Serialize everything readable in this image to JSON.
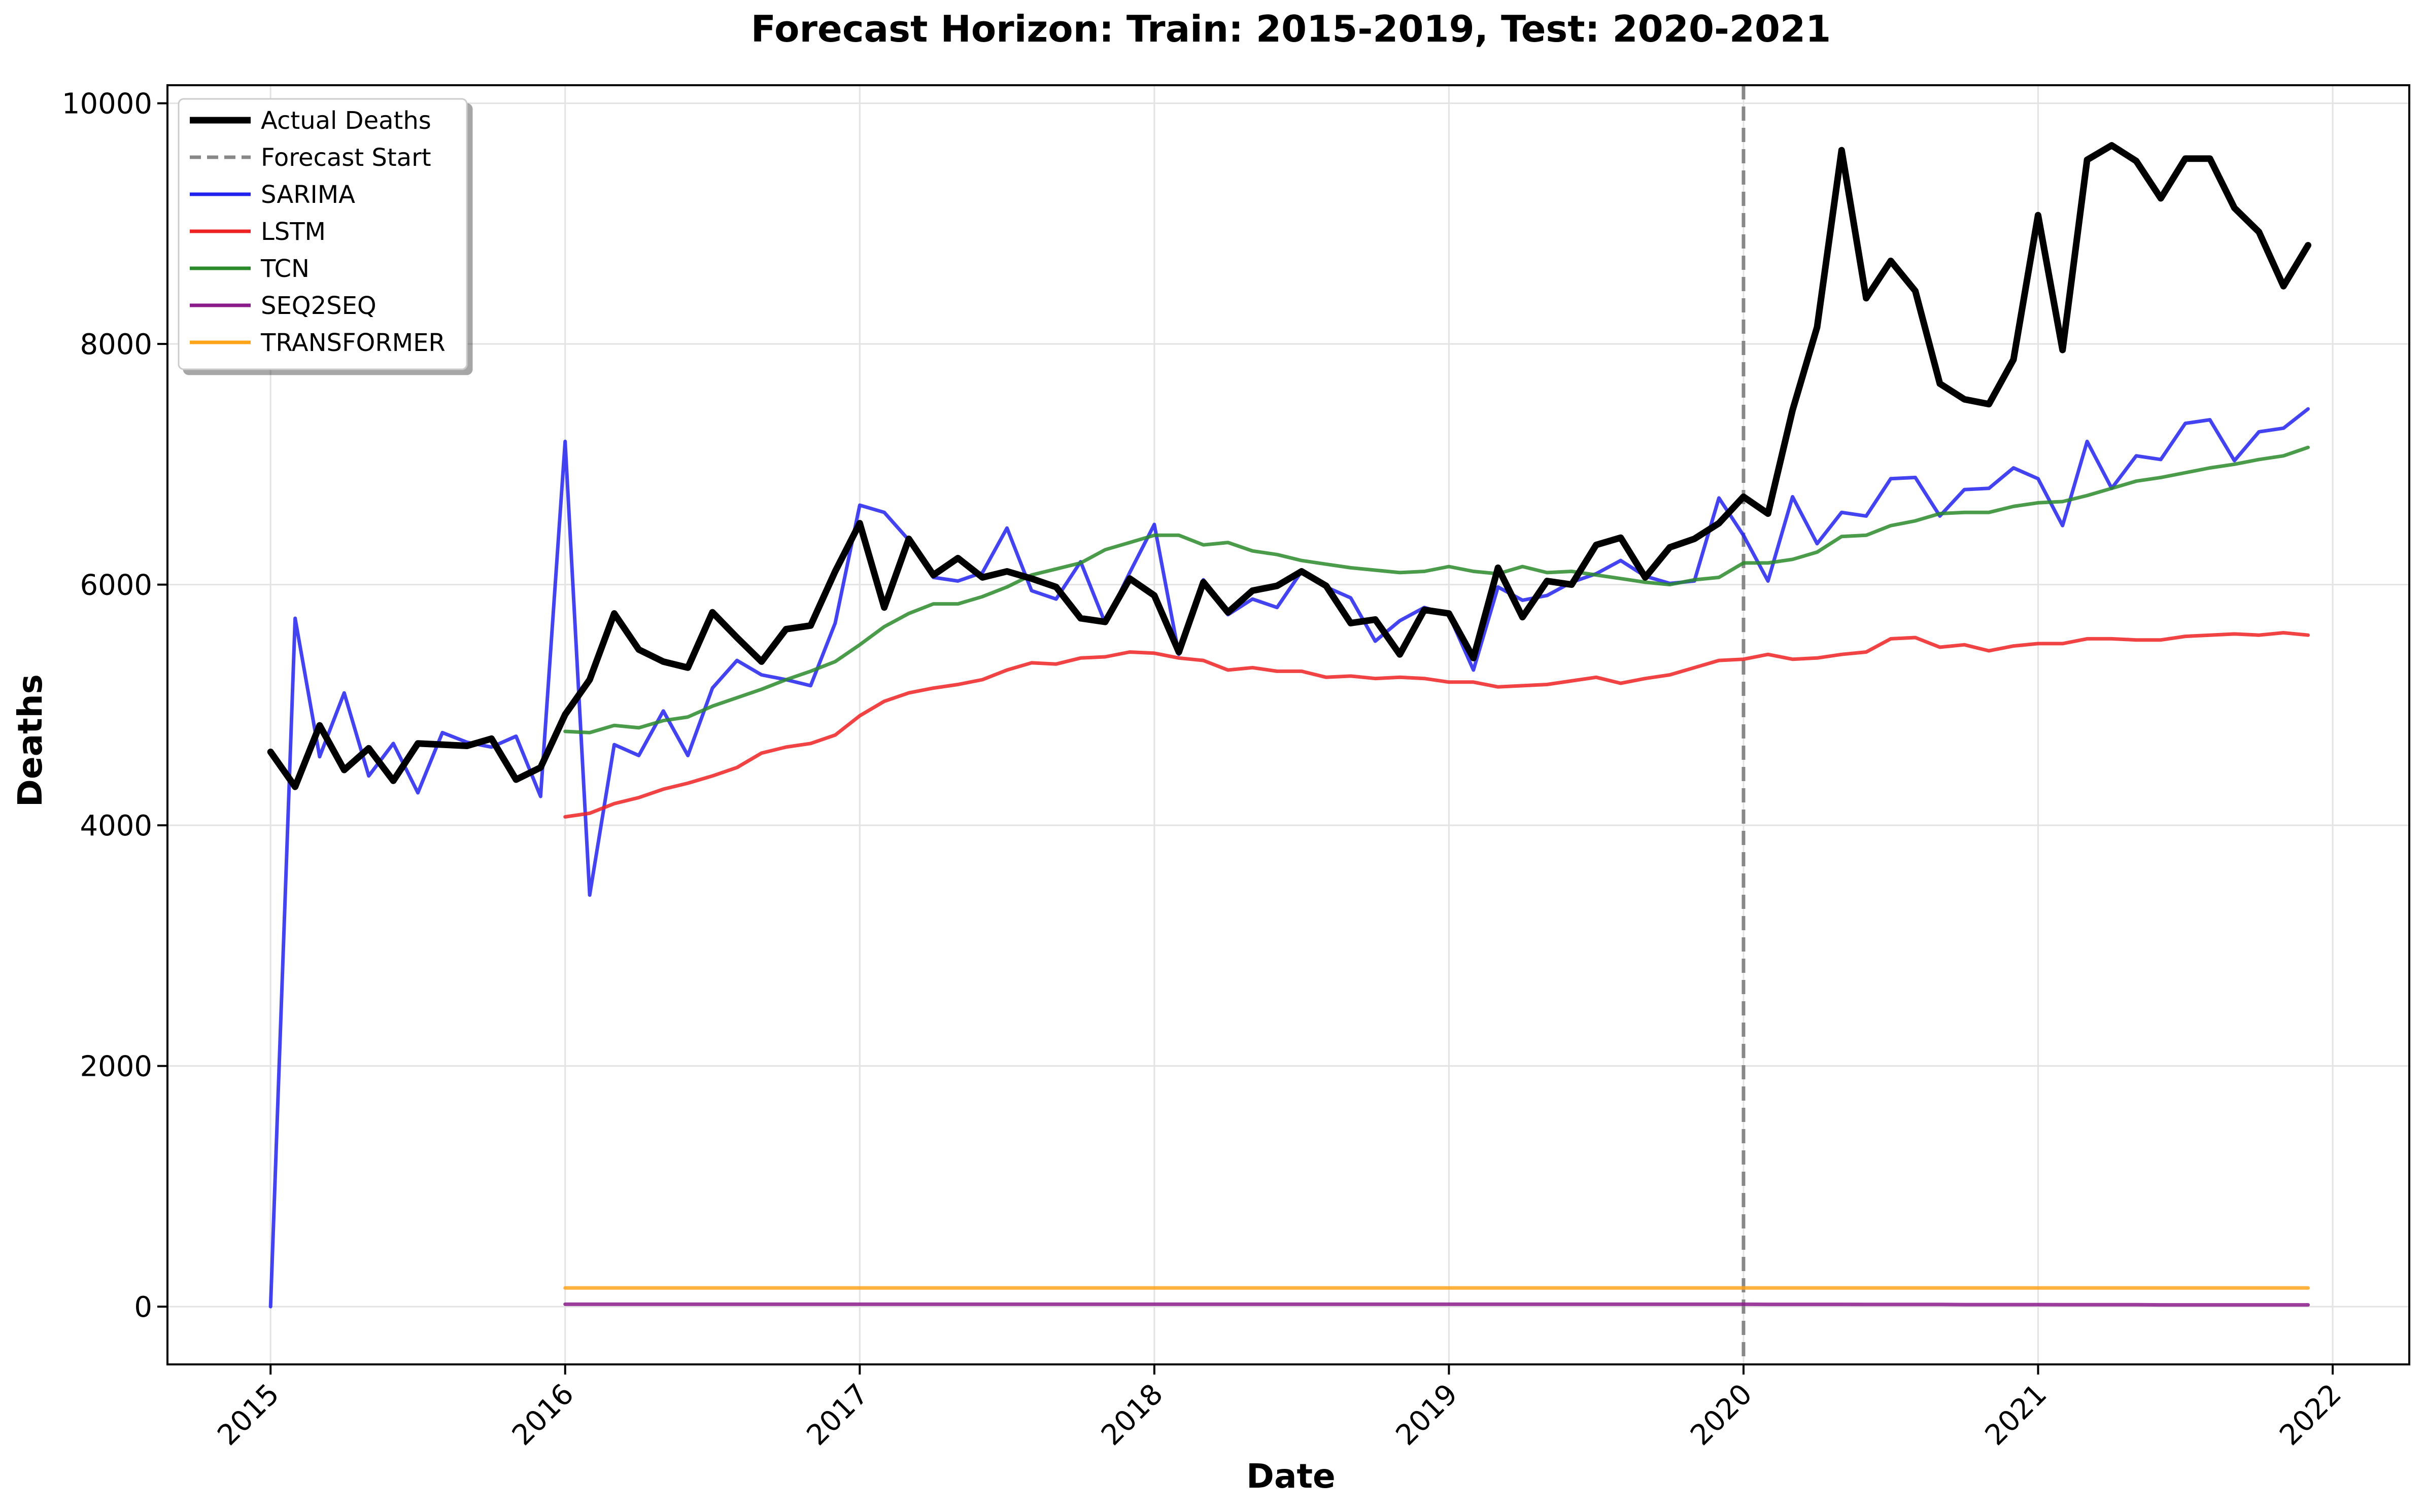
{
  "chart_data": {
    "type": "line",
    "title": "Forecast Horizon: Train: 2015-2019, Test: 2020-2021",
    "xlabel": "Date",
    "ylabel": "Deaths",
    "xlim": [
      2014.65,
      2022.26
    ],
    "ylim": [
      -480,
      10150
    ],
    "x_ticks": [
      {
        "value": 2015,
        "label": "2015"
      },
      {
        "value": 2016,
        "label": "2016"
      },
      {
        "value": 2017,
        "label": "2017"
      },
      {
        "value": 2018,
        "label": "2018"
      },
      {
        "value": 2019,
        "label": "2019"
      },
      {
        "value": 2020,
        "label": "2020"
      },
      {
        "value": 2021,
        "label": "2021"
      },
      {
        "value": 2022,
        "label": "2022"
      }
    ],
    "y_ticks": [
      {
        "value": 0,
        "label": "0"
      },
      {
        "value": 2000,
        "label": "2000"
      },
      {
        "value": 4000,
        "label": "4000"
      },
      {
        "value": 6000,
        "label": "6000"
      },
      {
        "value": 8000,
        "label": "8000"
      },
      {
        "value": 10000,
        "label": "10000"
      }
    ],
    "grid": true,
    "legend_position": "top-left",
    "forecast_start": {
      "x": 2020.0,
      "label": "Forecast Start",
      "color": "#888888"
    },
    "x_start": 2015.0,
    "x_step": 0.08333,
    "series": [
      {
        "name": "Actual Deaths",
        "color": "#000000",
        "start_index": 0,
        "values": [
          4610,
          4320,
          4830,
          4460,
          4640,
          4370,
          4680,
          4670,
          4660,
          4720,
          4380,
          4480,
          4920,
          5210,
          5760,
          5460,
          5360,
          5310,
          5770,
          5560,
          5360,
          5630,
          5660,
          6110,
          6510,
          5810,
          6380,
          6080,
          6220,
          6060,
          6110,
          6050,
          5980,
          5720,
          5690,
          6050,
          5910,
          5440,
          6020,
          5770,
          5950,
          5990,
          6110,
          5990,
          5680,
          5710,
          5420,
          5790,
          5760,
          5390,
          6140,
          5730,
          6030,
          6000,
          6330,
          6390,
          6060,
          6310,
          6380,
          6510,
          6730,
          6590,
          7450,
          8140,
          9610,
          8380,
          8690,
          8440,
          7670,
          7540,
          7500,
          7870,
          9070,
          7950,
          9530,
          9650,
          9520,
          9210,
          9540,
          9540,
          9130,
          8930,
          8480,
          8820
        ]
      },
      {
        "name": "SARIMA",
        "color": "#2222ee",
        "start_index": 0,
        "values": [
          0,
          5720,
          4570,
          5100,
          4410,
          4680,
          4270,
          4770,
          4690,
          4650,
          4740,
          4240,
          7190,
          3420,
          4670,
          4580,
          4950,
          4580,
          5140,
          5370,
          5250,
          5210,
          5160,
          5680,
          6660,
          6600,
          6370,
          6060,
          6030,
          6100,
          6470,
          5950,
          5880,
          6190,
          5680,
          6100,
          6500,
          5420,
          6040,
          5750,
          5880,
          5810,
          6110,
          5980,
          5890,
          5530,
          5700,
          5810,
          5750,
          5290,
          5980,
          5870,
          5910,
          6020,
          6090,
          6200,
          6070,
          6010,
          6030,
          6720,
          6410,
          6030,
          6730,
          6340,
          6600,
          6570,
          6880,
          6890,
          6570,
          6790,
          6800,
          6970,
          6880,
          6490,
          7190,
          6800,
          7070,
          7040,
          7340,
          7370,
          7030,
          7270,
          7300,
          7460
        ]
      },
      {
        "name": "LSTM",
        "color": "#ee2222",
        "start_index": 12,
        "values": [
          4070,
          4100,
          4180,
          4230,
          4300,
          4350,
          4410,
          4480,
          4600,
          4650,
          4680,
          4750,
          4910,
          5030,
          5100,
          5140,
          5170,
          5210,
          5290,
          5350,
          5340,
          5390,
          5400,
          5440,
          5430,
          5390,
          5370,
          5290,
          5310,
          5280,
          5280,
          5230,
          5240,
          5220,
          5230,
          5220,
          5190,
          5190,
          5150,
          5160,
          5170,
          5200,
          5230,
          5180,
          5220,
          5250,
          5310,
          5370,
          5380,
          5420,
          5380,
          5390,
          5420,
          5440,
          5550,
          5560,
          5480,
          5500,
          5450,
          5490,
          5510,
          5510,
          5550,
          5550,
          5540,
          5540,
          5570,
          5580,
          5590,
          5580,
          5600,
          5580
        ]
      },
      {
        "name": "TCN",
        "color": "#2a8a2a",
        "start_index": 12,
        "values": [
          4780,
          4770,
          4830,
          4810,
          4870,
          4900,
          4990,
          5060,
          5130,
          5210,
          5280,
          5360,
          5500,
          5650,
          5760,
          5840,
          5840,
          5900,
          5980,
          6080,
          6130,
          6180,
          6290,
          6350,
          6410,
          6410,
          6330,
          6350,
          6280,
          6250,
          6200,
          6170,
          6140,
          6120,
          6100,
          6110,
          6150,
          6110,
          6090,
          6150,
          6100,
          6110,
          6080,
          6050,
          6020,
          6000,
          6040,
          6060,
          6180,
          6180,
          6210,
          6270,
          6400,
          6410,
          6490,
          6530,
          6590,
          6600,
          6600,
          6650,
          6680,
          6690,
          6740,
          6800,
          6860,
          6890,
          6930,
          6970,
          7000,
          7040,
          7070,
          7140
        ]
      },
      {
        "name": "SEQ2SEQ",
        "color": "#8b1a8b",
        "start_index": 12,
        "values": [
          20,
          20,
          20,
          20,
          20,
          20,
          20,
          20,
          20,
          20,
          20,
          20,
          20,
          20,
          20,
          20,
          20,
          20,
          20,
          20,
          20,
          20,
          20,
          20,
          20,
          20,
          20,
          20,
          20,
          20,
          20,
          20,
          20,
          20,
          20,
          20,
          20,
          20,
          20,
          20,
          20,
          20,
          20,
          20,
          20,
          20,
          20,
          20,
          20,
          19,
          19,
          19,
          19,
          18,
          18,
          18,
          18,
          17,
          17,
          17,
          17,
          16,
          16,
          16,
          16,
          15,
          15,
          15,
          15,
          15,
          15,
          15
        ]
      },
      {
        "name": "TRANSFORMER",
        "color": "#ffa319",
        "start_index": 12,
        "values": [
          155,
          155,
          155,
          155,
          155,
          155,
          155,
          155,
          155,
          155,
          155,
          155,
          155,
          155,
          155,
          155,
          155,
          155,
          155,
          155,
          155,
          155,
          155,
          155,
          155,
          155,
          155,
          155,
          155,
          155,
          155,
          155,
          155,
          155,
          155,
          155,
          155,
          155,
          155,
          155,
          155,
          155,
          155,
          155,
          155,
          155,
          155,
          155,
          155,
          155,
          155,
          155,
          155,
          155,
          155,
          155,
          155,
          155,
          155,
          155,
          155,
          155,
          155,
          155,
          155,
          155,
          155,
          155,
          155,
          155,
          155,
          155
        ]
      }
    ]
  }
}
